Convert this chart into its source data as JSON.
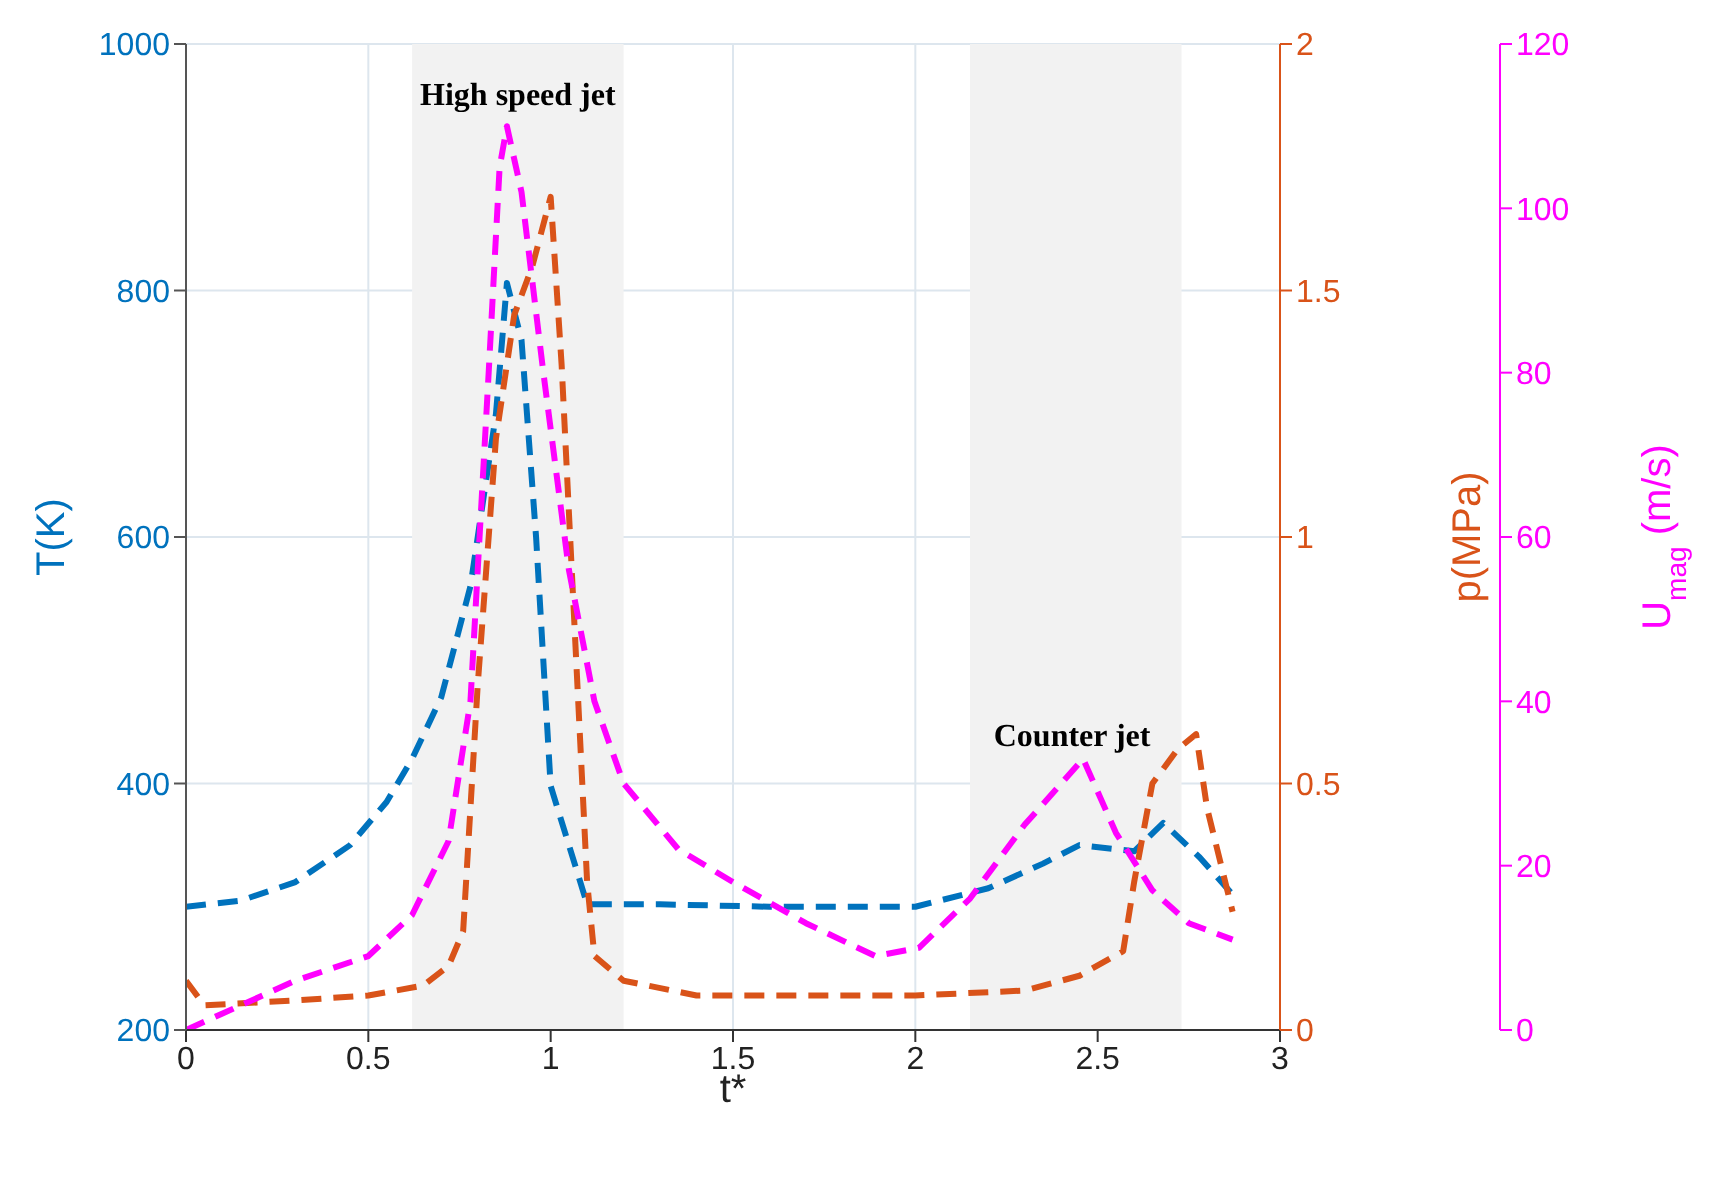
{
  "chart_data": {
    "type": "line",
    "xlabel": "t*",
    "ylabel": "T(K)",
    "y2label": "p(MPa)",
    "y3label": "U$_{mag}$ (m/s)",
    "xlim": [
      0,
      3
    ],
    "xticks": [
      0,
      0.5,
      1,
      1.5,
      2,
      2.5,
      3
    ],
    "ylim": [
      200,
      1000
    ],
    "yticks": [
      200,
      400,
      600,
      800,
      1000
    ],
    "y2lim": [
      0,
      2
    ],
    "y2ticks": [
      0,
      0.5,
      1,
      1.5,
      2
    ],
    "y3lim": [
      0,
      120
    ],
    "y3ticks": [
      0,
      20,
      40,
      60,
      80,
      100,
      120
    ],
    "grid": true,
    "line_style": "dashed",
    "bands": [
      {
        "axis": "x",
        "from": 0.62,
        "to": 1.2,
        "color": "#f2f2f2"
      },
      {
        "axis": "x",
        "from": 2.15,
        "to": 2.73,
        "color": "#f2f2f2"
      }
    ],
    "annotations": [
      "High speed jet",
      "Counter jet"
    ],
    "series": [
      {
        "color": "#0072bd",
        "x": [
          0,
          0.15,
          0.3,
          0.45,
          0.55,
          0.62,
          0.7,
          0.78,
          0.85,
          0.88,
          0.92,
          0.96,
          1.0,
          1.05,
          1.1,
          1.3,
          1.6,
          2.0,
          2.2,
          2.35,
          2.45,
          2.6,
          2.68,
          2.78,
          2.87
        ],
        "values": [
          300,
          305,
          320,
          350,
          385,
          420,
          470,
          560,
          700,
          806,
          760,
          600,
          398,
          350,
          302,
          302,
          300,
          300,
          315,
          335,
          350,
          345,
          368,
          340,
          310
        ]
      },
      {
        "color": "#d95319",
        "axis": "y2",
        "x": [
          0,
          0.05,
          0.3,
          0.5,
          0.65,
          0.72,
          0.76,
          0.8,
          0.85,
          0.9,
          0.95,
          1.0,
          1.03,
          1.06,
          1.1,
          1.12,
          1.2,
          1.4,
          1.7,
          2.0,
          2.3,
          2.45,
          2.57,
          2.6,
          2.65,
          2.72,
          2.77,
          2.8,
          2.87
        ],
        "values": [
          0.1,
          0.05,
          0.06,
          0.07,
          0.09,
          0.13,
          0.2,
          0.7,
          1.2,
          1.45,
          1.55,
          1.69,
          1.35,
          0.9,
          0.3,
          0.15,
          0.1,
          0.07,
          0.07,
          0.07,
          0.08,
          0.11,
          0.16,
          0.3,
          0.5,
          0.57,
          0.6,
          0.45,
          0.24
        ]
      },
      {
        "color": "#ff00ff",
        "axis": "y3",
        "x": [
          0,
          0.15,
          0.3,
          0.5,
          0.62,
          0.72,
          0.78,
          0.83,
          0.86,
          0.88,
          0.92,
          0.98,
          1.05,
          1.12,
          1.2,
          1.35,
          1.5,
          1.7,
          1.89,
          2.01,
          2.15,
          2.3,
          2.46,
          2.55,
          2.65,
          2.75,
          2.87
        ],
        "values": [
          0,
          3,
          6,
          9,
          14,
          23,
          40,
          80,
          105,
          110,
          102,
          80,
          56,
          40,
          30,
          22,
          18,
          13,
          9,
          10,
          16,
          25,
          33,
          24,
          17,
          13,
          11
        ]
      }
    ]
  }
}
